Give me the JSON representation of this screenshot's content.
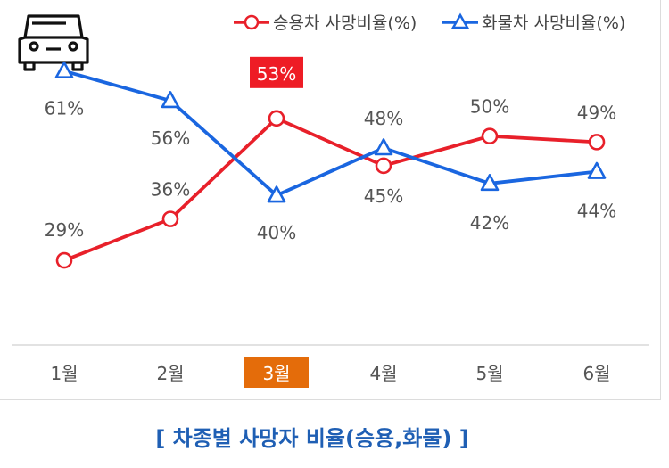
{
  "colors": {
    "passenger": "#e8202a",
    "cargo": "#1a66e0",
    "highlight_label": "#ee1c25",
    "highlight_tick": "#e46c0a",
    "caption": "#1f5fb4"
  },
  "icons": {
    "corner": "car-icon"
  },
  "caption": "[ 차종별 사망자 비율(승용,화물) ]",
  "chart_data": {
    "type": "line",
    "categories": [
      "1월",
      "2월",
      "3월",
      "4월",
      "5월",
      "6월"
    ],
    "highlight_category": "3월",
    "ylim": [
      15,
      70
    ],
    "grid": false,
    "legend_position": "top-right",
    "series": [
      {
        "name": "승용차 사망비율(%)",
        "key": "passenger",
        "marker": "circle",
        "values": [
          29,
          36,
          53,
          45,
          50,
          49
        ],
        "labels": [
          "29%",
          "36%",
          "53%",
          "45%",
          "50%",
          "49%"
        ]
      },
      {
        "name": "화물차 사망비율(%)",
        "key": "cargo",
        "marker": "triangle",
        "values": [
          61,
          56,
          40,
          48,
          42,
          44
        ],
        "labels": [
          "61%",
          "56%",
          "40%",
          "48%",
          "42%",
          "44%"
        ]
      }
    ]
  }
}
